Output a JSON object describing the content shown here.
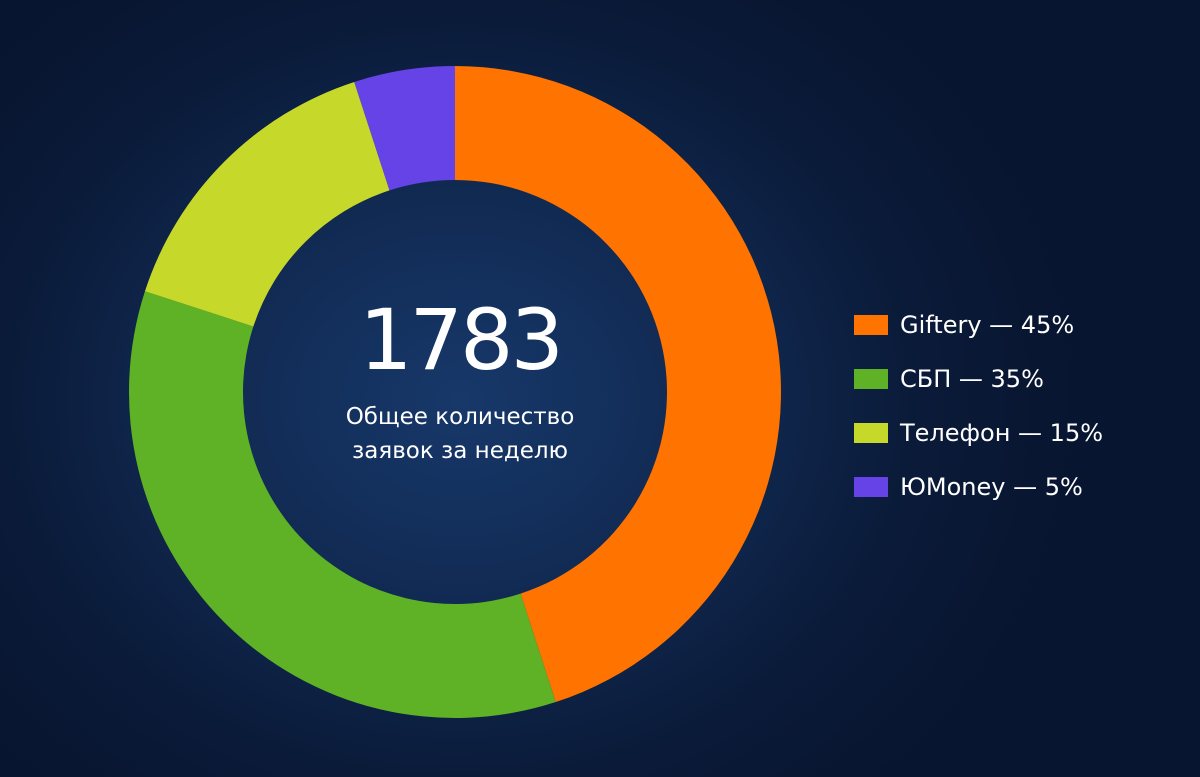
{
  "chart_data": {
    "type": "pie",
    "variant": "donut",
    "total": "1783",
    "caption_lines": [
      "Общее количество",
      "заявок за неделю"
    ],
    "slices": [
      {
        "label": "Giftery",
        "value": 45,
        "color": "#ff7300"
      },
      {
        "label": "СБП",
        "value": 35,
        "color": "#5fb226"
      },
      {
        "label": "Телефон",
        "value": 15,
        "color": "#c6d92b"
      },
      {
        "label": "ЮMoney",
        "value": 5,
        "color": "#6543e6"
      }
    ],
    "legend": {
      "placement": "right",
      "items": [
        {
          "text": "Giftery — 45%",
          "color": "#ff7300"
        },
        {
          "text": "СБП — 35%",
          "color": "#5fb226"
        },
        {
          "text": "Телефон — 15%",
          "color": "#c6d92b"
        },
        {
          "text": "ЮMoney — 5%",
          "color": "#6543e6"
        }
      ]
    }
  }
}
